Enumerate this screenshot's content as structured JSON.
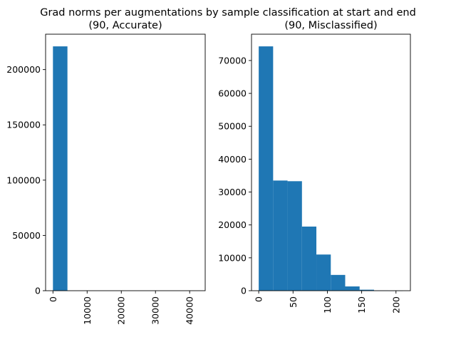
{
  "figure": {
    "suptitle": "Grad norms per augmentations by sample classification at start and end"
  },
  "chart_data": [
    {
      "type": "bar",
      "subtitle": "(90, Accurate)",
      "color": "#1f77b4",
      "xlim": [
        -2150,
        44550
      ],
      "ylim": [
        0,
        232000
      ],
      "xticks": [
        0,
        10000,
        20000,
        30000,
        40000
      ],
      "yticks": [
        0,
        50000,
        100000,
        150000,
        200000
      ],
      "bins": [
        {
          "x0": 0,
          "x1": 4240,
          "count": 221000
        },
        {
          "x0": 4240,
          "x1": 8480,
          "count": 0
        },
        {
          "x0": 8480,
          "x1": 12720,
          "count": 0
        },
        {
          "x0": 12720,
          "x1": 16960,
          "count": 0
        },
        {
          "x0": 16960,
          "x1": 21200,
          "count": 0
        },
        {
          "x0": 21200,
          "x1": 25440,
          "count": 0
        },
        {
          "x0": 25440,
          "x1": 29680,
          "count": 0
        },
        {
          "x0": 29680,
          "x1": 33920,
          "count": 0
        },
        {
          "x0": 33920,
          "x1": 38160,
          "count": 0
        },
        {
          "x0": 38160,
          "x1": 42400,
          "count": 0
        }
      ]
    },
    {
      "type": "bar",
      "subtitle": "(90, Misclassified)",
      "color": "#1f77b4",
      "xlim": [
        -10.5,
        221
      ],
      "ylim": [
        0,
        78000
      ],
      "xticks": [
        0,
        50,
        100,
        150,
        200
      ],
      "yticks": [
        0,
        10000,
        20000,
        30000,
        40000,
        50000,
        60000,
        70000
      ],
      "bins": [
        {
          "x0": 0,
          "x1": 21,
          "count": 74300
        },
        {
          "x0": 21,
          "x1": 42,
          "count": 33500
        },
        {
          "x0": 42,
          "x1": 63,
          "count": 33300
        },
        {
          "x0": 63,
          "x1": 84,
          "count": 19500
        },
        {
          "x0": 84,
          "x1": 105,
          "count": 11000
        },
        {
          "x0": 105,
          "x1": 126,
          "count": 4800
        },
        {
          "x0": 126,
          "x1": 147,
          "count": 1300
        },
        {
          "x0": 147,
          "x1": 168,
          "count": 300
        },
        {
          "x0": 168,
          "x1": 189,
          "count": 60
        },
        {
          "x0": 189,
          "x1": 210,
          "count": 10
        }
      ]
    }
  ]
}
